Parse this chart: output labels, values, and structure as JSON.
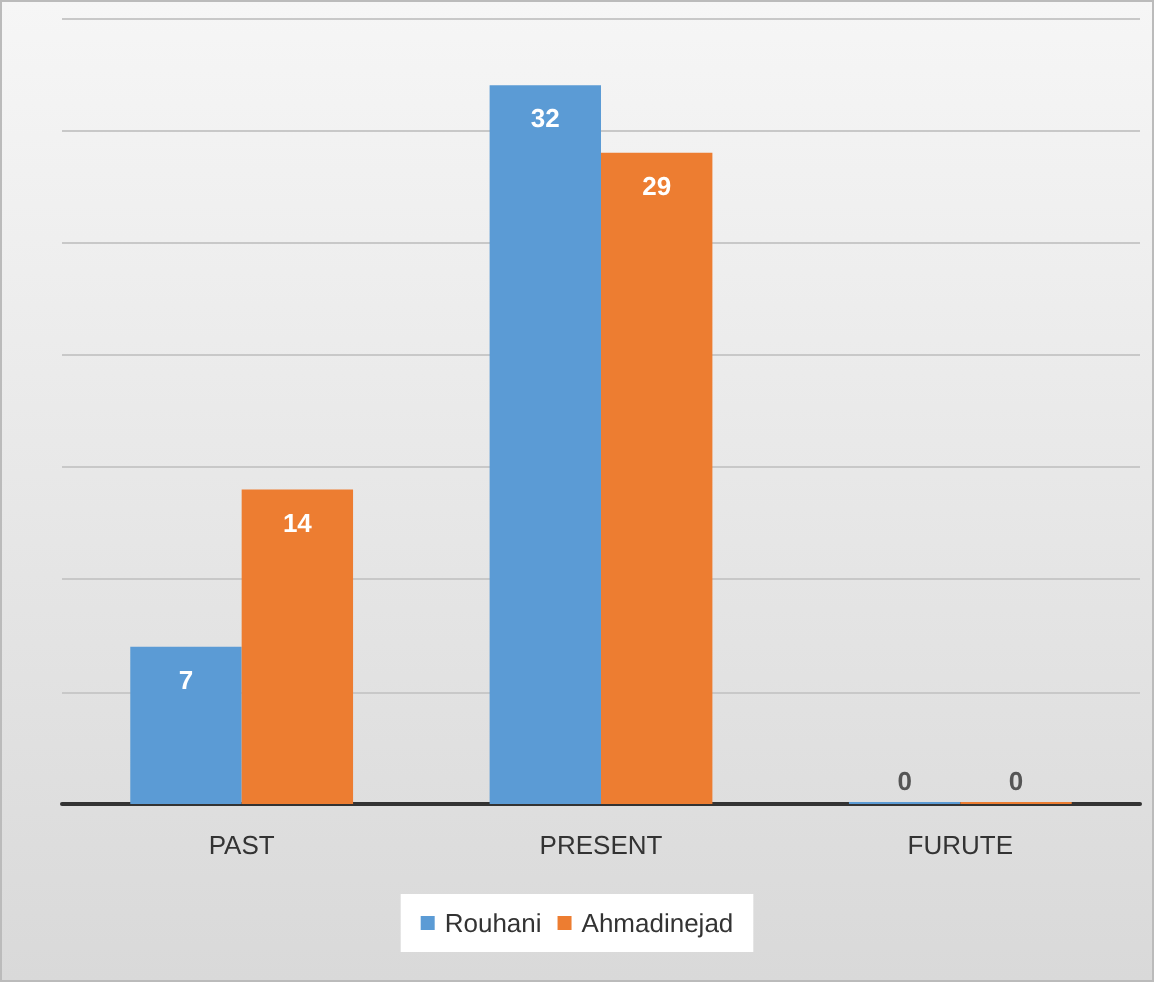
{
  "chart_data": {
    "type": "bar",
    "categories": [
      "PAST",
      "PRESENT",
      "FURUTE"
    ],
    "series": [
      {
        "name": "Rouhani",
        "color": "#5b9bd5",
        "values": [
          7,
          32,
          0
        ]
      },
      {
        "name": "Ahmadinejad",
        "color": "#ed7d31",
        "values": [
          14,
          29,
          0
        ]
      }
    ],
    "ylim": [
      0,
      35
    ],
    "yticks": [
      {
        "value": 0,
        "label": null
      },
      {
        "value": 5,
        "label": null
      },
      {
        "value": 10,
        "label": null
      },
      {
        "value": 15,
        "label": null
      },
      {
        "value": 20,
        "label": null
      },
      {
        "value": 25,
        "label": null
      },
      {
        "value": 30,
        "label": null
      },
      {
        "value": 35,
        "label": null
      }
    ],
    "tick_labels": "x",
    "grid": "y",
    "data_labels": true,
    "legend": "bottom"
  }
}
